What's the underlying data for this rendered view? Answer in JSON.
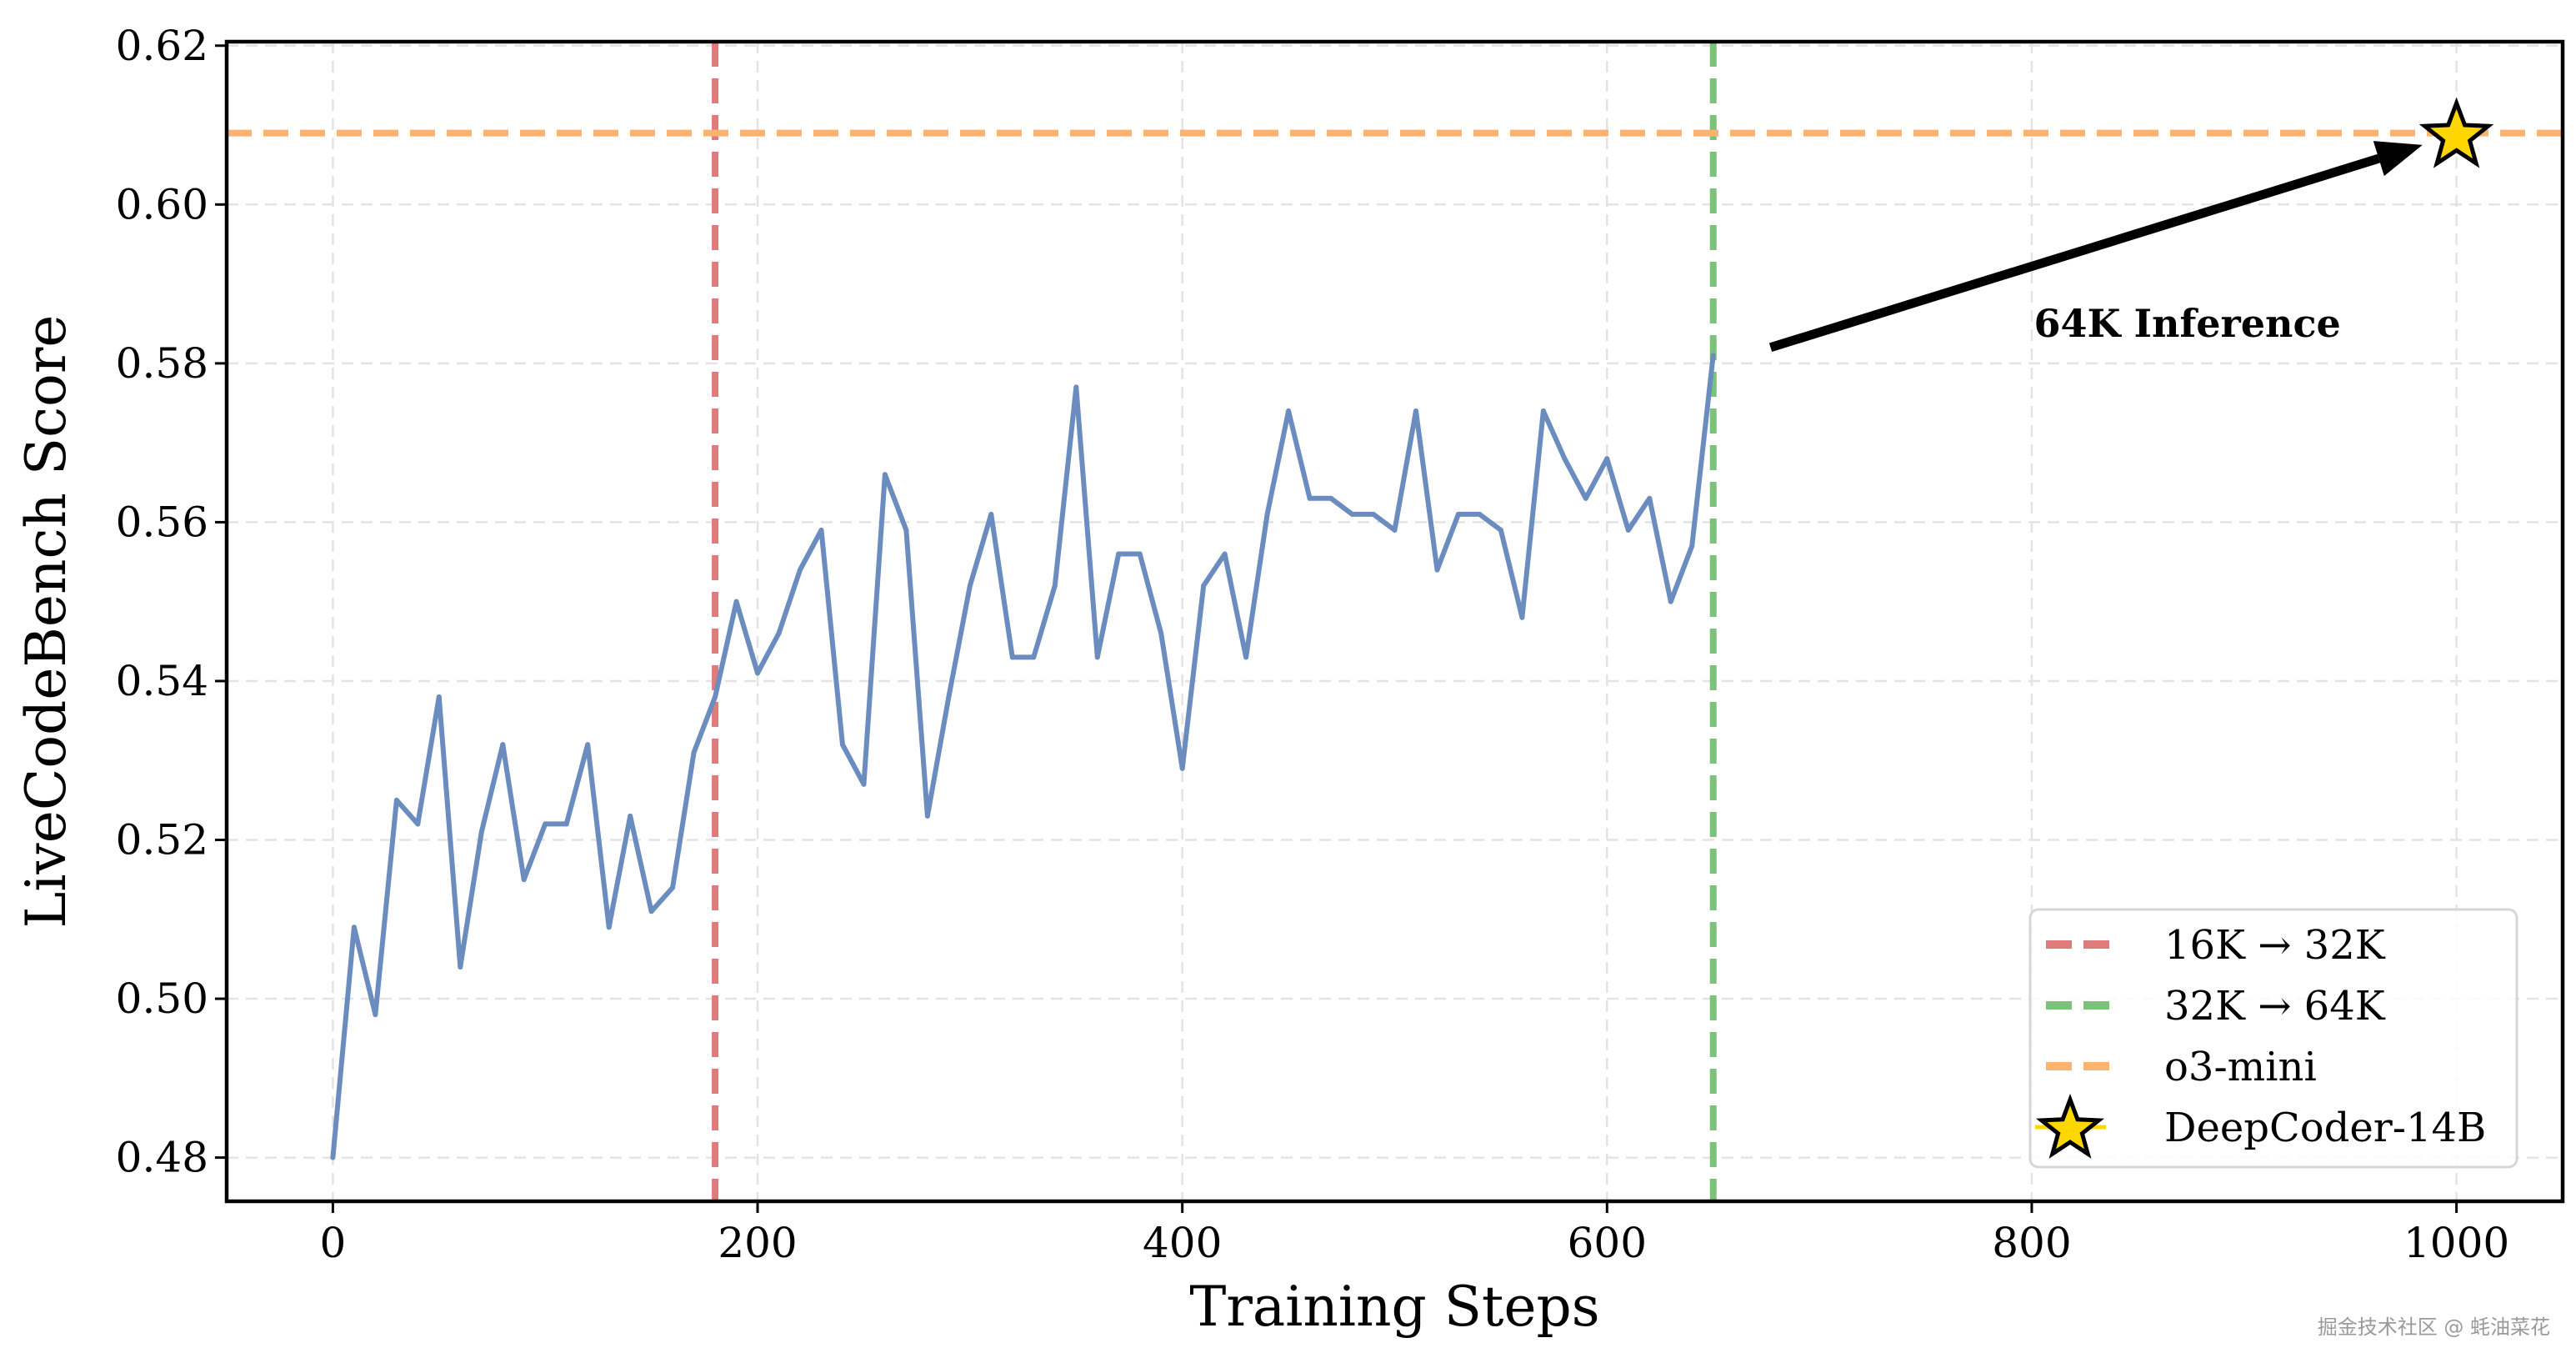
{
  "chart_data": {
    "type": "line",
    "title": "",
    "xlabel": "Training Steps",
    "ylabel": "LiveCodeBench Score",
    "xlim": [
      -50,
      1050
    ],
    "ylim": [
      0.4745,
      0.6205
    ],
    "xticks": [
      0,
      200,
      400,
      600,
      800,
      1000
    ],
    "xtick_labels": [
      "0",
      "200",
      "400",
      "600",
      "800",
      "1000"
    ],
    "yticks": [
      0.48,
      0.5,
      0.52,
      0.54,
      0.56,
      0.58,
      0.6,
      0.62
    ],
    "ytick_labels": [
      "0.48",
      "0.50",
      "0.52",
      "0.54",
      "0.56",
      "0.58",
      "0.60",
      "0.62"
    ],
    "grid": true,
    "legend_position": "lower-right",
    "series": [
      {
        "color": "#6b8cbf",
        "x": [
          0,
          10,
          20,
          30,
          40,
          50,
          60,
          70,
          80,
          90,
          100,
          110,
          120,
          130,
          140,
          150,
          160,
          170,
          180,
          190,
          200,
          210,
          220,
          230,
          240,
          250,
          260,
          270,
          280,
          290,
          300,
          310,
          320,
          330,
          340,
          350,
          360,
          370,
          380,
          390,
          400,
          410,
          420,
          430,
          440,
          450,
          460,
          470,
          480,
          490,
          500,
          510,
          520,
          530,
          540,
          550,
          560,
          570,
          580,
          590,
          600,
          610,
          620,
          630,
          640,
          650
        ],
        "y": [
          0.48,
          0.509,
          0.498,
          0.525,
          0.522,
          0.538,
          0.504,
          0.521,
          0.532,
          0.515,
          0.522,
          0.522,
          0.532,
          0.509,
          0.523,
          0.511,
          0.514,
          0.531,
          0.538,
          0.55,
          0.541,
          0.546,
          0.554,
          0.559,
          0.532,
          0.527,
          0.566,
          0.559,
          0.523,
          0.538,
          0.552,
          0.561,
          0.543,
          0.543,
          0.552,
          0.577,
          0.543,
          0.556,
          0.556,
          0.546,
          0.529,
          0.552,
          0.556,
          0.543,
          0.561,
          0.574,
          0.563,
          0.563,
          0.561,
          0.561,
          0.559,
          0.574,
          0.554,
          0.561,
          0.561,
          0.559,
          0.548,
          0.574,
          0.568,
          0.563,
          0.568,
          0.559,
          0.563,
          0.55,
          0.557,
          0.581
        ]
      }
    ],
    "vlines": [
      {
        "name": "16K → 32K",
        "x": 180,
        "color": "#e07b7b"
      },
      {
        "name": "32K → 64K",
        "x": 650,
        "color": "#7dc27a"
      }
    ],
    "hlines": [
      {
        "name": "o3-mini",
        "y": 0.609,
        "color": "#fdb36f"
      }
    ],
    "points": [
      {
        "name": "DeepCoder-14B",
        "x": 1000,
        "y": 0.609,
        "marker": "star",
        "color": "#FFD700",
        "edgecolor": "#000000"
      }
    ],
    "annotations": [
      {
        "text": "64K Inference",
        "text_x": 801,
        "text_y": 0.585,
        "arrow_from": [
          677,
          0.582
        ],
        "arrow_to": [
          984,
          0.6075
        ]
      }
    ]
  },
  "watermark": "掘金技术社区 @ 蚝油菜花"
}
